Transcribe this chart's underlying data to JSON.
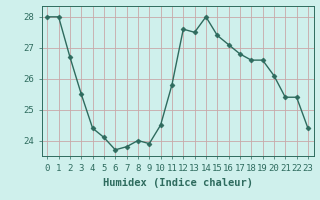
{
  "xlabel": "Humidex (Indice chaleur)",
  "x": [
    0,
    1,
    2,
    3,
    4,
    5,
    6,
    7,
    8,
    9,
    10,
    11,
    12,
    13,
    14,
    15,
    16,
    17,
    18,
    19,
    20,
    21,
    22,
    23
  ],
  "y": [
    28.0,
    28.0,
    26.7,
    25.5,
    24.4,
    24.1,
    23.7,
    23.8,
    24.0,
    23.9,
    24.5,
    25.8,
    27.6,
    27.5,
    28.0,
    27.4,
    27.1,
    26.8,
    26.6,
    26.6,
    26.1,
    25.4,
    25.4,
    24.4
  ],
  "line_color": "#2e6b5e",
  "marker": "D",
  "marker_size": 2.5,
  "bg_color": "#cff0ec",
  "grid_color": "#c8a8a8",
  "ylim": [
    23.5,
    28.35
  ],
  "yticks": [
    24,
    25,
    26,
    27,
    28
  ],
  "xticks": [
    0,
    1,
    2,
    3,
    4,
    5,
    6,
    7,
    8,
    9,
    10,
    11,
    12,
    13,
    14,
    15,
    16,
    17,
    18,
    19,
    20,
    21,
    22,
    23
  ],
  "tick_fontsize": 6.5,
  "xlabel_fontsize": 7.5,
  "linewidth": 1.0
}
